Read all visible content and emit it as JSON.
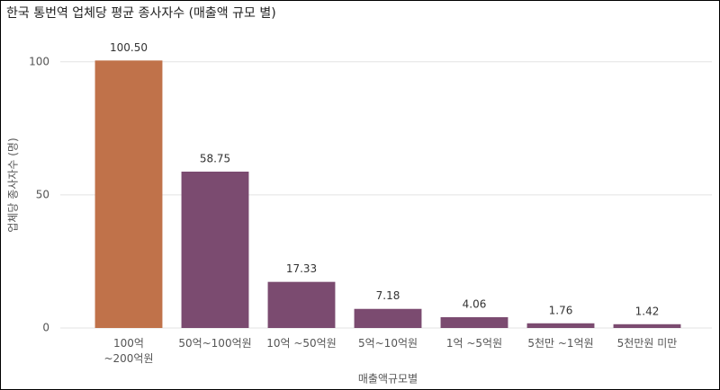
{
  "chart_data": {
    "type": "bar",
    "title": "한국 통번역 업체당 평균 종사자수 (매출액 규모 별)",
    "x_label": "매출액규모별",
    "y_label": "업체당 종사자수 (명)",
    "categories": [
      "100억\n~200억원",
      "50억~100억원",
      "10억 ~50억원",
      "5억~10억원",
      "1억 ~5억원",
      "5천만 ~1억원",
      "5천만원 미만"
    ],
    "values": [
      100.5,
      58.75,
      17.33,
      7.18,
      4.06,
      1.76,
      1.42
    ],
    "value_labels": [
      "100.50",
      "58.75",
      "17.33",
      "7.18",
      "4.06",
      "1.76",
      "1.42"
    ],
    "colors": [
      "#c0724a",
      "#7b4b70",
      "#7b4b70",
      "#7b4b70",
      "#7b4b70",
      "#7b4b70",
      "#7b4b70"
    ],
    "ylim": [
      0,
      105
    ],
    "yticks": [
      0,
      50,
      100
    ],
    "grid": true
  }
}
